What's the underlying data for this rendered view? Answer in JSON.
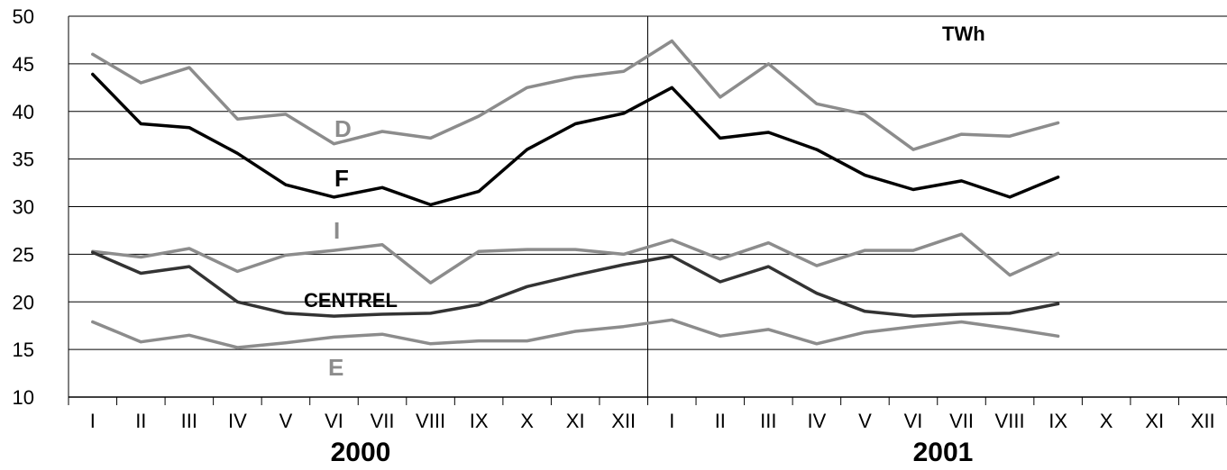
{
  "chart_data": {
    "type": "line",
    "unit_label": "TWh",
    "ylim": [
      10,
      50
    ],
    "yticks": [
      "10",
      "15",
      "20",
      "25",
      "30",
      "35",
      "40",
      "45",
      "50"
    ],
    "xticks": [
      "I",
      "II",
      "III",
      "IV",
      "V",
      "VI",
      "VII",
      "VIII",
      "IX",
      "X",
      "XI",
      "XII",
      "I",
      "II",
      "III",
      "IV",
      "V",
      "VI",
      "VII",
      "VIII",
      "IX",
      "X",
      "XI",
      "XII"
    ],
    "years": [
      "2000",
      "2001"
    ],
    "grid": true,
    "series": [
      {
        "name": "D",
        "color": "#8c8c8c",
        "values": [
          46.0,
          43.0,
          44.6,
          39.2,
          39.7,
          36.6,
          37.9,
          37.2,
          39.5,
          42.5,
          43.6,
          44.2,
          47.4,
          41.5,
          45.0,
          40.8,
          39.7,
          36.0,
          37.6,
          37.4,
          38.8
        ]
      },
      {
        "name": "F",
        "color": "#000000",
        "values": [
          43.9,
          38.7,
          38.3,
          35.6,
          32.3,
          31.0,
          32.0,
          30.2,
          31.6,
          36.0,
          38.7,
          39.8,
          42.5,
          37.2,
          37.8,
          36.0,
          33.3,
          31.8,
          32.7,
          31.0,
          33.1
        ]
      },
      {
        "name": "I",
        "color": "#8c8c8c",
        "values": [
          25.3,
          24.7,
          25.6,
          23.2,
          24.9,
          25.4,
          26.0,
          22.0,
          25.3,
          25.5,
          25.5,
          25.0,
          26.5,
          24.5,
          26.2,
          23.8,
          25.4,
          25.4,
          27.1,
          22.8,
          25.1
        ]
      },
      {
        "name": "CENTREL",
        "color": "#333333",
        "values": [
          25.2,
          23.0,
          23.7,
          20.0,
          18.8,
          18.5,
          18.7,
          18.8,
          19.7,
          21.6,
          22.8,
          23.9,
          24.8,
          22.1,
          23.7,
          20.9,
          19.0,
          18.5,
          18.7,
          18.8,
          19.8
        ]
      },
      {
        "name": "E",
        "color": "#8c8c8c",
        "values": [
          17.9,
          15.8,
          16.5,
          15.2,
          15.7,
          16.3,
          16.6,
          15.6,
          15.9,
          15.9,
          16.9,
          17.4,
          18.1,
          16.4,
          17.1,
          15.6,
          16.8,
          17.4,
          17.9,
          17.2,
          16.4
        ]
      }
    ]
  }
}
